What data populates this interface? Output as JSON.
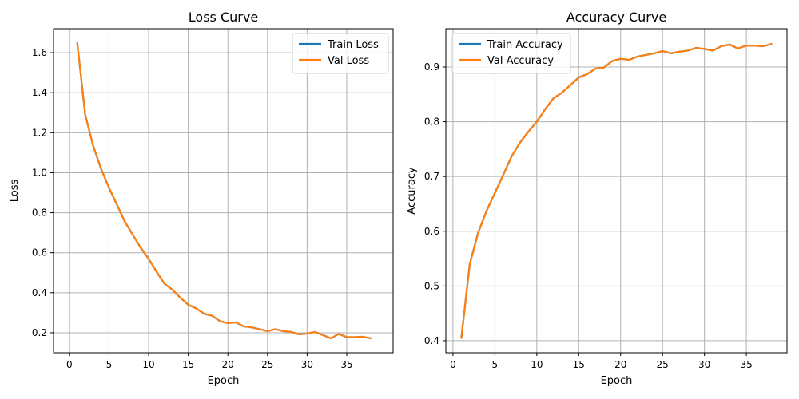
{
  "chart_data": [
    {
      "type": "line",
      "title": "Loss Curve",
      "xlabel": "Epoch",
      "ylabel": "Loss",
      "xlim": [
        -2.0,
        40.85
      ],
      "ylim": [
        0.1,
        1.72
      ],
      "xticks": [
        0,
        5,
        10,
        15,
        20,
        25,
        30,
        35
      ],
      "yticks": [
        0.2,
        0.4,
        0.6,
        0.8,
        1.0,
        1.2,
        1.4,
        1.6
      ],
      "ytick_decimals": 1,
      "grid": true,
      "legend_position": "top-right",
      "x": [
        1,
        2,
        3,
        4,
        5,
        6,
        7,
        8,
        9,
        10,
        11,
        12,
        13,
        14,
        15,
        16,
        17,
        18,
        19,
        20,
        21,
        22,
        23,
        24,
        25,
        26,
        27,
        28,
        29,
        30,
        31,
        32,
        33,
        34,
        35,
        36,
        37,
        38
      ],
      "series": [
        {
          "name": "Train Loss",
          "color": "#1f77b4",
          "values": [
            1.648,
            1.29,
            1.135,
            1.02,
            0.925,
            0.84,
            0.755,
            0.69,
            0.625,
            0.57,
            0.505,
            0.445,
            0.415,
            0.375,
            0.34,
            0.322,
            0.295,
            0.285,
            0.258,
            0.248,
            0.252,
            0.232,
            0.227,
            0.218,
            0.208,
            0.218,
            0.208,
            0.204,
            0.192,
            0.196,
            0.204,
            0.188,
            0.172,
            0.194,
            0.178,
            0.178,
            0.18,
            0.172
          ]
        },
        {
          "name": "Val Loss",
          "color": "#ff7f0e",
          "values": [
            1.648,
            1.29,
            1.135,
            1.02,
            0.925,
            0.84,
            0.755,
            0.69,
            0.625,
            0.57,
            0.505,
            0.445,
            0.415,
            0.375,
            0.34,
            0.322,
            0.295,
            0.285,
            0.258,
            0.248,
            0.252,
            0.232,
            0.227,
            0.218,
            0.208,
            0.218,
            0.208,
            0.204,
            0.192,
            0.196,
            0.204,
            0.188,
            0.172,
            0.194,
            0.178,
            0.178,
            0.18,
            0.172
          ]
        }
      ]
    },
    {
      "type": "line",
      "title": "Accuracy Curve",
      "xlabel": "Epoch",
      "ylabel": "Accuracy",
      "xlim": [
        -0.85,
        39.85
      ],
      "ylim": [
        0.378,
        0.97
      ],
      "xticks": [
        0,
        5,
        10,
        15,
        20,
        25,
        30,
        35
      ],
      "yticks": [
        0.4,
        0.5,
        0.6,
        0.7,
        0.8,
        0.9
      ],
      "ytick_decimals": 1,
      "grid": true,
      "legend_position": "top-left",
      "x": [
        1,
        2,
        3,
        4,
        5,
        6,
        7,
        8,
        9,
        10,
        11,
        12,
        13,
        14,
        15,
        16,
        17,
        18,
        19,
        20,
        21,
        22,
        23,
        24,
        25,
        26,
        27,
        28,
        29,
        30,
        31,
        32,
        33,
        34,
        35,
        36,
        37,
        38
      ],
      "series": [
        {
          "name": "Train Accuracy",
          "color": "#1f77b4",
          "values": [
            0.405,
            0.54,
            0.597,
            0.637,
            0.67,
            0.703,
            0.737,
            0.762,
            0.782,
            0.8,
            0.823,
            0.843,
            0.853,
            0.867,
            0.881,
            0.887,
            0.897,
            0.899,
            0.911,
            0.915,
            0.913,
            0.919,
            0.922,
            0.925,
            0.929,
            0.925,
            0.928,
            0.93,
            0.935,
            0.933,
            0.93,
            0.938,
            0.941,
            0.934,
            0.939,
            0.939,
            0.938,
            0.942
          ]
        },
        {
          "name": "Val Accuracy",
          "color": "#ff7f0e",
          "values": [
            0.405,
            0.54,
            0.597,
            0.637,
            0.67,
            0.703,
            0.737,
            0.762,
            0.782,
            0.8,
            0.823,
            0.843,
            0.853,
            0.867,
            0.881,
            0.887,
            0.897,
            0.899,
            0.911,
            0.915,
            0.913,
            0.919,
            0.922,
            0.925,
            0.929,
            0.925,
            0.928,
            0.93,
            0.935,
            0.933,
            0.93,
            0.938,
            0.941,
            0.934,
            0.939,
            0.939,
            0.938,
            0.942
          ]
        }
      ]
    }
  ]
}
